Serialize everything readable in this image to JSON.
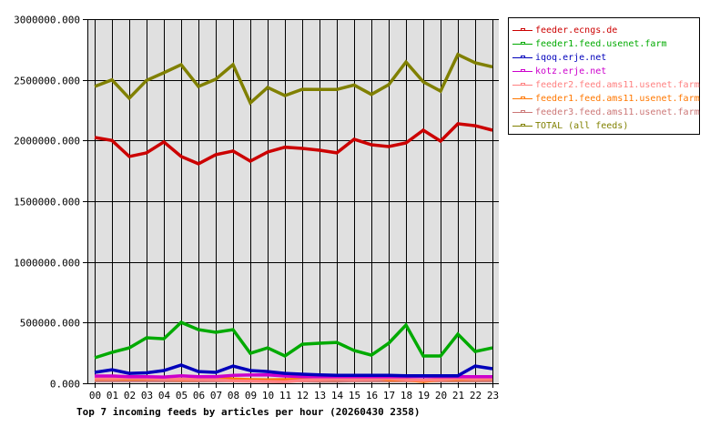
{
  "chart_data": {
    "type": "line",
    "title": "Top 7 incoming feeds by articles per hour (20260430 2358)",
    "xlabel": "",
    "ylabel": "",
    "ylim": [
      0,
      3000000
    ],
    "grid": true,
    "legend_position": "right",
    "y_ticks": [
      "0.000",
      "500000.000",
      "1000000.000",
      "1500000.000",
      "2000000.000",
      "2500000.000",
      "3000000.000"
    ],
    "y_tick_values": [
      0,
      500000,
      1000000,
      1500000,
      2000000,
      2500000,
      3000000
    ],
    "categories": [
      "00",
      "01",
      "02",
      "03",
      "04",
      "05",
      "06",
      "07",
      "08",
      "09",
      "10",
      "11",
      "12",
      "13",
      "14",
      "15",
      "16",
      "17",
      "18",
      "19",
      "20",
      "21",
      "22",
      "23"
    ],
    "series": [
      {
        "name": "feeder.ecngs.de",
        "color": "#cc0000",
        "values": [
          2025000,
          2000000,
          1868000,
          1898000,
          1988000,
          1868000,
          1808000,
          1883000,
          1913000,
          1830000,
          1905000,
          1945000,
          1935000,
          1920000,
          1898000,
          2010000,
          1965000,
          1950000,
          1980000,
          2085000,
          1995000,
          2138000,
          2122000,
          2085000
        ]
      },
      {
        "name": "feeder1.feed.usenet.farm",
        "color": "#00aa00",
        "values": [
          210000,
          255000,
          292000,
          375000,
          367000,
          502000,
          442000,
          420000,
          442000,
          247000,
          292000,
          225000,
          322000,
          330000,
          337000,
          270000,
          232000,
          330000,
          480000,
          225000,
          225000,
          405000,
          262000,
          292000
        ]
      },
      {
        "name": "iqoq.erje.net",
        "color": "#0000bb",
        "values": [
          90000,
          112000,
          82000,
          86000,
          105000,
          150000,
          97000,
          90000,
          142000,
          105000,
          97000,
          82000,
          75000,
          70000,
          65000,
          65000,
          65000,
          65000,
          62000,
          62000,
          62000,
          62000,
          142000,
          120000
        ]
      },
      {
        "name": "kotz.erje.net",
        "color": "#cc00cc",
        "values": [
          60000,
          60000,
          55000,
          55000,
          52000,
          62000,
          55000,
          55000,
          65000,
          68000,
          70000,
          60000,
          55000,
          55000,
          55000,
          55000,
          55000,
          55000,
          55000,
          55000,
          55000,
          55000,
          55000,
          55000
        ]
      },
      {
        "name": "feeder2.feed.ams11.usenet.farm",
        "color": "#ff8080",
        "values": [
          40000,
          38000,
          42000,
          40000,
          36000,
          34000,
          32000,
          30000,
          20000,
          18000,
          15000,
          12000,
          25000,
          30000,
          35000,
          30000,
          34000,
          40000,
          28000,
          25000,
          30000,
          40000,
          36000,
          38000
        ]
      },
      {
        "name": "feeder1.feed.ams11.usenet.farm",
        "color": "#ff7700",
        "values": [
          35000,
          35000,
          35000,
          36000,
          36000,
          30000,
          30000,
          50000,
          35000,
          30000,
          28000,
          30000,
          32000,
          30000,
          34000,
          38000,
          42000,
          30000,
          28000,
          15000,
          30000,
          32000,
          34000,
          36000
        ]
      },
      {
        "name": "feeder3.feed.ams11.usenet.farm",
        "color": "#cc7777",
        "values": [
          22000,
          22000,
          22000,
          22000,
          22000,
          22000,
          20000,
          22000,
          22000,
          22000,
          22000,
          22000,
          20000,
          18000,
          18000,
          22000,
          22000,
          22000,
          22000,
          22000,
          22000,
          22000,
          22000,
          22000
        ]
      },
      {
        "name": "TOTAL (all feeds)",
        "color": "#808000",
        "values": [
          2445000,
          2500000,
          2348000,
          2495000,
          2558000,
          2625000,
          2445000,
          2505000,
          2625000,
          2310000,
          2437000,
          2370000,
          2422000,
          2420000,
          2420000,
          2457000,
          2380000,
          2460000,
          2647000,
          2483000,
          2407000,
          2708000,
          2640000,
          2607000
        ]
      }
    ]
  },
  "legend": {
    "items": [
      {
        "label": "feeder.ecngs.de",
        "color": "#cc0000"
      },
      {
        "label": "feeder1.feed.usenet.farm",
        "color": "#00aa00"
      },
      {
        "label": "iqoq.erje.net",
        "color": "#0000bb"
      },
      {
        "label": "kotz.erje.net",
        "color": "#cc00cc"
      },
      {
        "label": "feeder2.feed.ams11.usenet.farm",
        "color": "#ff8080"
      },
      {
        "label": "feeder1.feed.ams11.usenet.farm",
        "color": "#ff7700"
      },
      {
        "label": "feeder3.feed.ams11.usenet.farm",
        "color": "#cc7777"
      },
      {
        "label": "TOTAL (all feeds)",
        "color": "#808000"
      }
    ]
  },
  "plot": {
    "background": "#e0e0e0",
    "grid_color": "#000000"
  }
}
